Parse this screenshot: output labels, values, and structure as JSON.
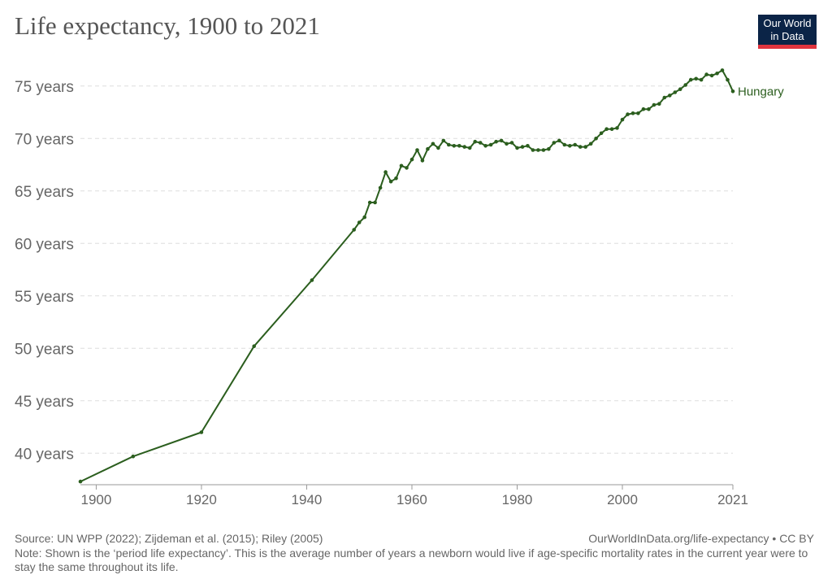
{
  "title": "Life expectancy, 1900 to 2021",
  "logo": {
    "line1": "Our World",
    "line2": "in Data"
  },
  "footer": {
    "source": "Source: UN WPP (2022); Zijdeman et al. (2015); Riley (2005)",
    "url": "OurWorldInData.org/life-expectancy • CC BY",
    "note": "Note: Shown is the ‘period life expectancy’. This is the average number of years a newborn would live if age-specific mortality rates in the current year were to stay the same throughout its life."
  },
  "colors": {
    "series": "#2b5e1e",
    "grid": "#dddddd",
    "text": "#666666"
  },
  "chart_data": {
    "type": "line",
    "title": "Life expectancy, 1900 to 2021",
    "xlim": [
      1897,
      2021
    ],
    "ylim": [
      37,
      77
    ],
    "grid": "horizontal dashed",
    "x_ticks": [
      {
        "value": 1900,
        "label": "1900"
      },
      {
        "value": 1920,
        "label": "1920"
      },
      {
        "value": 1940,
        "label": "1940"
      },
      {
        "value": 1960,
        "label": "1960"
      },
      {
        "value": 1980,
        "label": "1980"
      },
      {
        "value": 2000,
        "label": "2000"
      },
      {
        "value": 2021,
        "label": "2021"
      }
    ],
    "y_ticks": [
      {
        "value": 40,
        "label": "40 years"
      },
      {
        "value": 45,
        "label": "45 years"
      },
      {
        "value": 50,
        "label": "50 years"
      },
      {
        "value": 55,
        "label": "55 years"
      },
      {
        "value": 60,
        "label": "60 years"
      },
      {
        "value": 65,
        "label": "65 years"
      },
      {
        "value": 70,
        "label": "70 years"
      },
      {
        "value": 75,
        "label": "75 years"
      }
    ],
    "series": [
      {
        "name": "Hungary",
        "x": [
          1897,
          1907,
          1920,
          1930,
          1941,
          1949,
          1950,
          1951,
          1952,
          1953,
          1954,
          1955,
          1956,
          1957,
          1958,
          1959,
          1960,
          1961,
          1962,
          1963,
          1964,
          1965,
          1966,
          1967,
          1968,
          1969,
          1970,
          1971,
          1972,
          1973,
          1974,
          1975,
          1976,
          1977,
          1978,
          1979,
          1980,
          1981,
          1982,
          1983,
          1984,
          1985,
          1986,
          1987,
          1988,
          1989,
          1990,
          1991,
          1992,
          1993,
          1994,
          1995,
          1996,
          1997,
          1998,
          1999,
          2000,
          2001,
          2002,
          2003,
          2004,
          2005,
          2006,
          2007,
          2008,
          2009,
          2010,
          2011,
          2012,
          2013,
          2014,
          2015,
          2016,
          2017,
          2018,
          2019,
          2020,
          2021
        ],
        "values": [
          37.3,
          39.7,
          42.0,
          50.2,
          56.5,
          61.3,
          62.0,
          62.5,
          63.9,
          63.9,
          65.3,
          66.8,
          65.9,
          66.2,
          67.4,
          67.2,
          68.0,
          68.9,
          67.9,
          69.0,
          69.5,
          69.1,
          69.8,
          69.4,
          69.3,
          69.3,
          69.2,
          69.1,
          69.7,
          69.6,
          69.3,
          69.4,
          69.7,
          69.8,
          69.5,
          69.6,
          69.1,
          69.2,
          69.3,
          68.9,
          68.9,
          68.9,
          69.0,
          69.6,
          69.8,
          69.4,
          69.3,
          69.4,
          69.2,
          69.2,
          69.5,
          70.0,
          70.5,
          70.9,
          70.9,
          71.0,
          71.8,
          72.3,
          72.4,
          72.4,
          72.8,
          72.8,
          73.2,
          73.3,
          73.9,
          74.1,
          74.4,
          74.7,
          75.1,
          75.6,
          75.7,
          75.6,
          76.1,
          76.0,
          76.2,
          76.5,
          75.6,
          74.5
        ]
      }
    ]
  }
}
